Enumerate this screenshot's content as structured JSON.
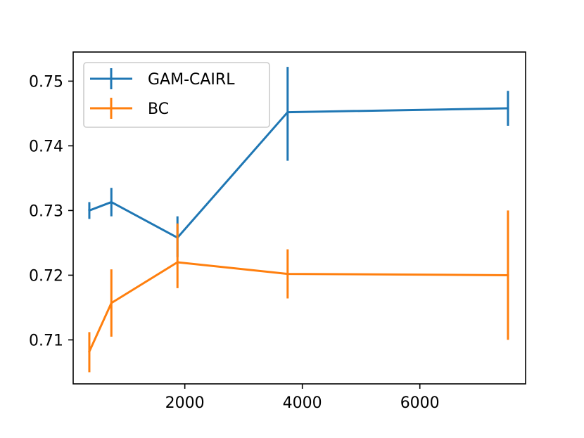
{
  "chart_data": {
    "type": "line",
    "title": "",
    "xlabel": "",
    "ylabel": "",
    "xlim": [
      100,
      7800
    ],
    "ylim": [
      0.7032,
      0.7545
    ],
    "xticks": [
      2000,
      4000,
      6000
    ],
    "yticks": [
      0.71,
      0.72,
      0.73,
      0.74,
      0.75
    ],
    "grid": false,
    "legend_position": "top-left",
    "error_bars": true,
    "series": [
      {
        "name": "GAM-CAIRL",
        "color": "#1f77b4",
        "x": [
          375,
          750,
          1875,
          3750,
          7500
        ],
        "y": [
          0.73,
          0.7313,
          0.7258,
          0.7452,
          0.7458
        ],
        "yerr_low": [
          0.0013,
          0.0022,
          0.003,
          0.0075,
          0.0027
        ],
        "yerr_high": [
          0.0013,
          0.0022,
          0.0033,
          0.007,
          0.0027
        ]
      },
      {
        "name": "BC",
        "color": "#ff7f0e",
        "x": [
          375,
          750,
          1875,
          3750,
          7500
        ],
        "y": [
          0.7082,
          0.7157,
          0.722,
          0.7202,
          0.72
        ],
        "yerr_low": [
          0.0032,
          0.0052,
          0.004,
          0.0038,
          0.01
        ],
        "yerr_high": [
          0.003,
          0.0052,
          0.006,
          0.0038,
          0.01
        ]
      }
    ]
  }
}
